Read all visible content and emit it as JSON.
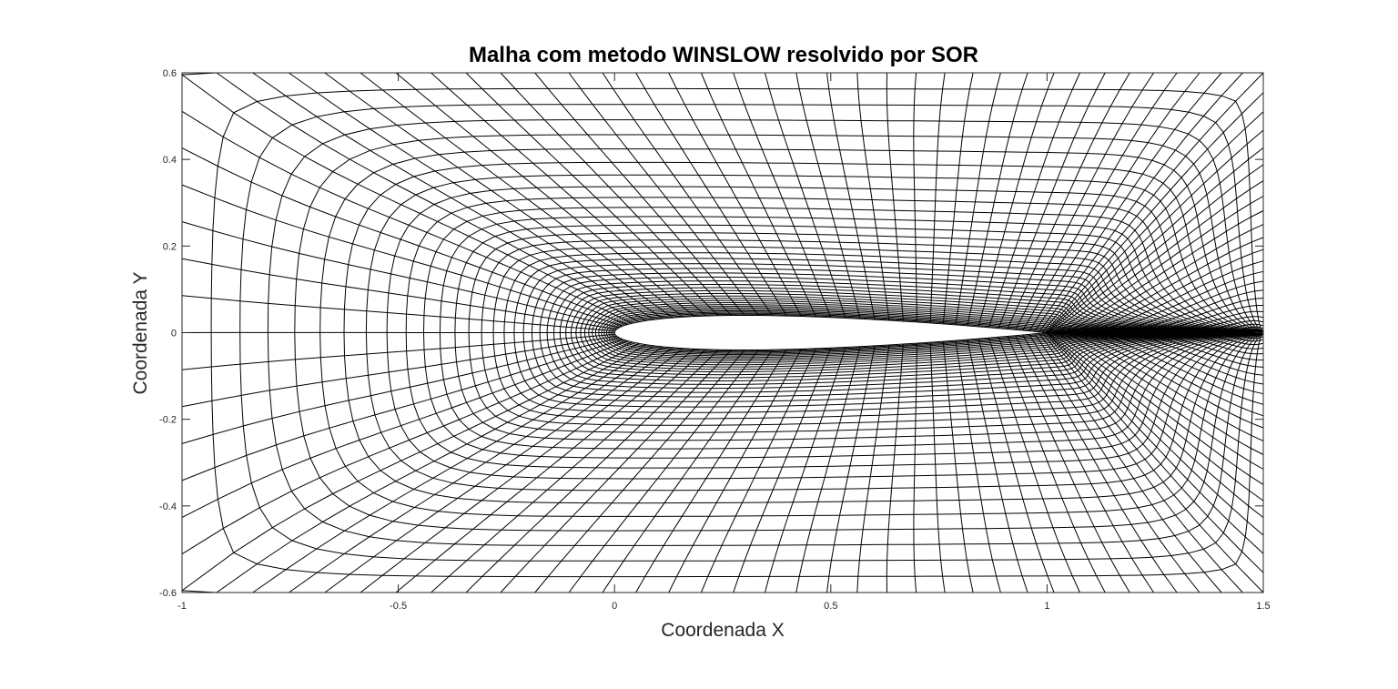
{
  "chart_data": {
    "type": "line",
    "title": "Malha com metodo WINSLOW resolvido por SOR",
    "xlabel": "Coordenada X",
    "ylabel": "Coordenada Y",
    "xlim": [
      -1,
      1.5
    ],
    "ylim": [
      -0.6,
      0.6
    ],
    "x_ticks": [
      -1,
      -0.5,
      0,
      0.5,
      1,
      1.5
    ],
    "x_tick_labels": [
      "-1",
      "-0.5",
      "0",
      "0.5",
      "1",
      "1.5"
    ],
    "y_ticks": [
      -0.6,
      -0.4,
      -0.2,
      0,
      0.2,
      0.4,
      0.6
    ],
    "y_tick_labels": [
      "-0.6",
      "-0.4",
      "-0.2",
      "0",
      "0.2",
      "0.4",
      "0.6"
    ],
    "grid": false,
    "legend": "none",
    "mesh": {
      "description": "structured C-grid around airfoil",
      "airfoil_chord": [
        0,
        1
      ],
      "airfoil_max_thickness": 0.08,
      "outer_boundary": {
        "x": [
          -1,
          1.5
        ],
        "y": [
          -0.6,
          0.6
        ]
      },
      "wall_normal_lines": 40,
      "around_body_lines_per_side": 47,
      "wake_lines": 22,
      "wake_end_x": 1.5,
      "color": "#000000"
    }
  }
}
